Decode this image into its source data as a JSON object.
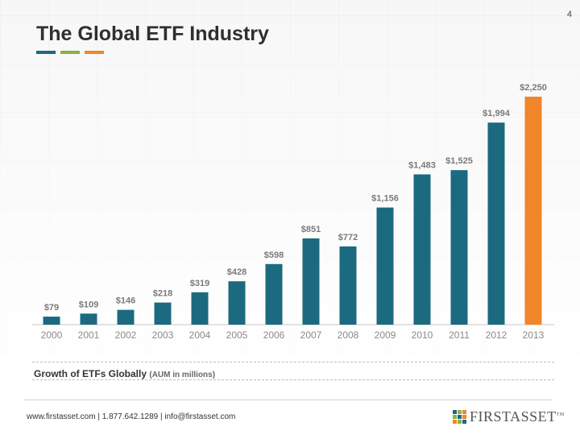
{
  "page_number": "4",
  "title": "The Global ETF Industry",
  "accent_colors": [
    "#1b6a80",
    "#8bb23e",
    "#f0852a"
  ],
  "caption": {
    "main": "Growth of ETFs Globally",
    "sub": "(AUM in millions)"
  },
  "footer": "www.firstasset.com  | 1.877.642.1289 | info@firstasset.com",
  "logo": {
    "text": "FIRSTASSET",
    "tm": "TM",
    "grid_colors": [
      "#1b6a80",
      "#8bb23e",
      "#f0852a",
      "#8bb23e",
      "#1b6a80",
      "#f0852a",
      "#f0852a",
      "#8bb23e",
      "#1b6a80"
    ]
  },
  "chart_data": {
    "type": "bar",
    "categories": [
      "2000",
      "2001",
      "2002",
      "2003",
      "2004",
      "2005",
      "2006",
      "2007",
      "2008",
      "2009",
      "2010",
      "2011",
      "2012",
      "2013"
    ],
    "values": [
      79,
      109,
      146,
      218,
      319,
      428,
      598,
      851,
      772,
      1156,
      1483,
      1525,
      1994,
      2250
    ],
    "labels": [
      "$79",
      "$109",
      "$146",
      "$218",
      "$319",
      "$428",
      "$598",
      "$851",
      "$772",
      "$1,156",
      "$1,483",
      "$1,525",
      "$1,994",
      "$2,250"
    ],
    "bar_color": "#1b6a80",
    "highlight_color": "#f0852a",
    "highlight_index": 13,
    "ylim": [
      0,
      2250
    ]
  }
}
